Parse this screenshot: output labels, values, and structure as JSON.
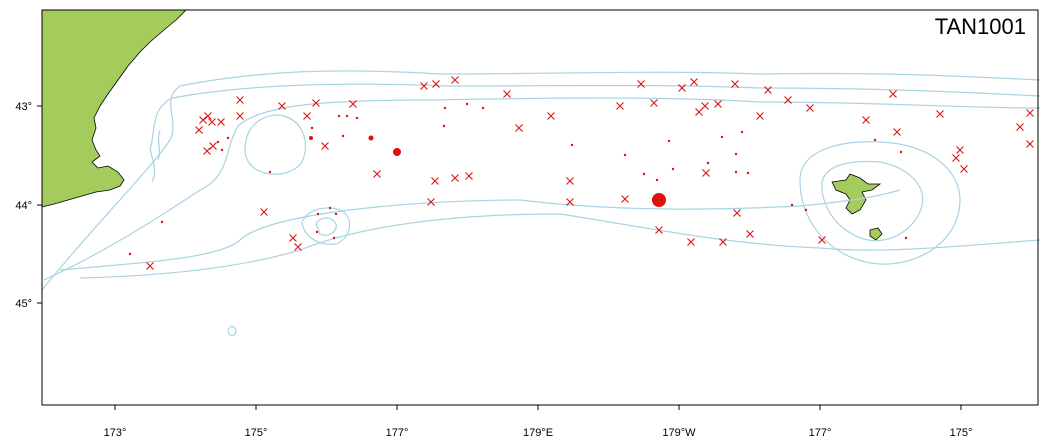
{
  "map": {
    "title": "TAN1001",
    "x_tick_labels": [
      "173°",
      "175°",
      "177°",
      "179°E",
      "179°W",
      "177°",
      "175°"
    ],
    "y_tick_labels": [
      "43°",
      "44°",
      "45°"
    ],
    "colors": {
      "land": "#a3cc5c",
      "contour": "#a8d4e2",
      "station": "#e01010"
    }
  }
}
